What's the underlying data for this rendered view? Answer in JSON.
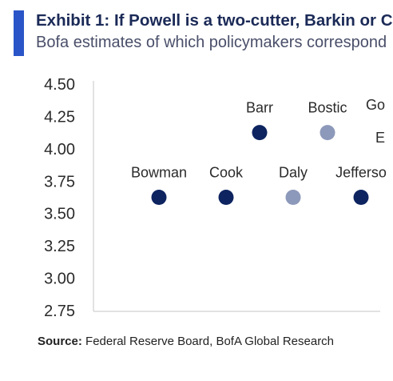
{
  "header": {
    "title": "Exhibit 1: If Powell is a two-cutter, Barkin or C",
    "subtitle": "Bofa estimates of which policymakers correspond"
  },
  "footer": {
    "source_label": "Source:",
    "source_text": "Federal Reserve Board, BofA Global Research"
  },
  "colors": {
    "accent": "#2a55c8",
    "voter": "#0e2460",
    "non_voter": "#8d99ba",
    "axis": "#d9d9d9",
    "text": "#2a2a2a"
  },
  "chart_data": {
    "type": "scatter",
    "title": "",
    "xlabel": "",
    "ylabel": "",
    "ylim": [
      2.75,
      4.5
    ],
    "yticks": [
      "4.50",
      "4.25",
      "4.00",
      "3.75",
      "3.50",
      "3.25",
      "3.00",
      "2.75"
    ],
    "grid": false,
    "points": [
      {
        "label": "Bowman",
        "y": 3.625,
        "color": "#0e2460"
      },
      {
        "label": "Cook",
        "y": 3.625,
        "color": "#0e2460"
      },
      {
        "label": "Barr",
        "y": 4.125,
        "color": "#0e2460"
      },
      {
        "label": "Daly",
        "y": 3.625,
        "color": "#8d99ba"
      },
      {
        "label": "Bostic",
        "y": 4.125,
        "color": "#8d99ba"
      },
      {
        "label": "Jefferso",
        "y": 3.625,
        "color": "#0e2460"
      }
    ],
    "partial_labels": [
      "Go",
      "E"
    ]
  }
}
